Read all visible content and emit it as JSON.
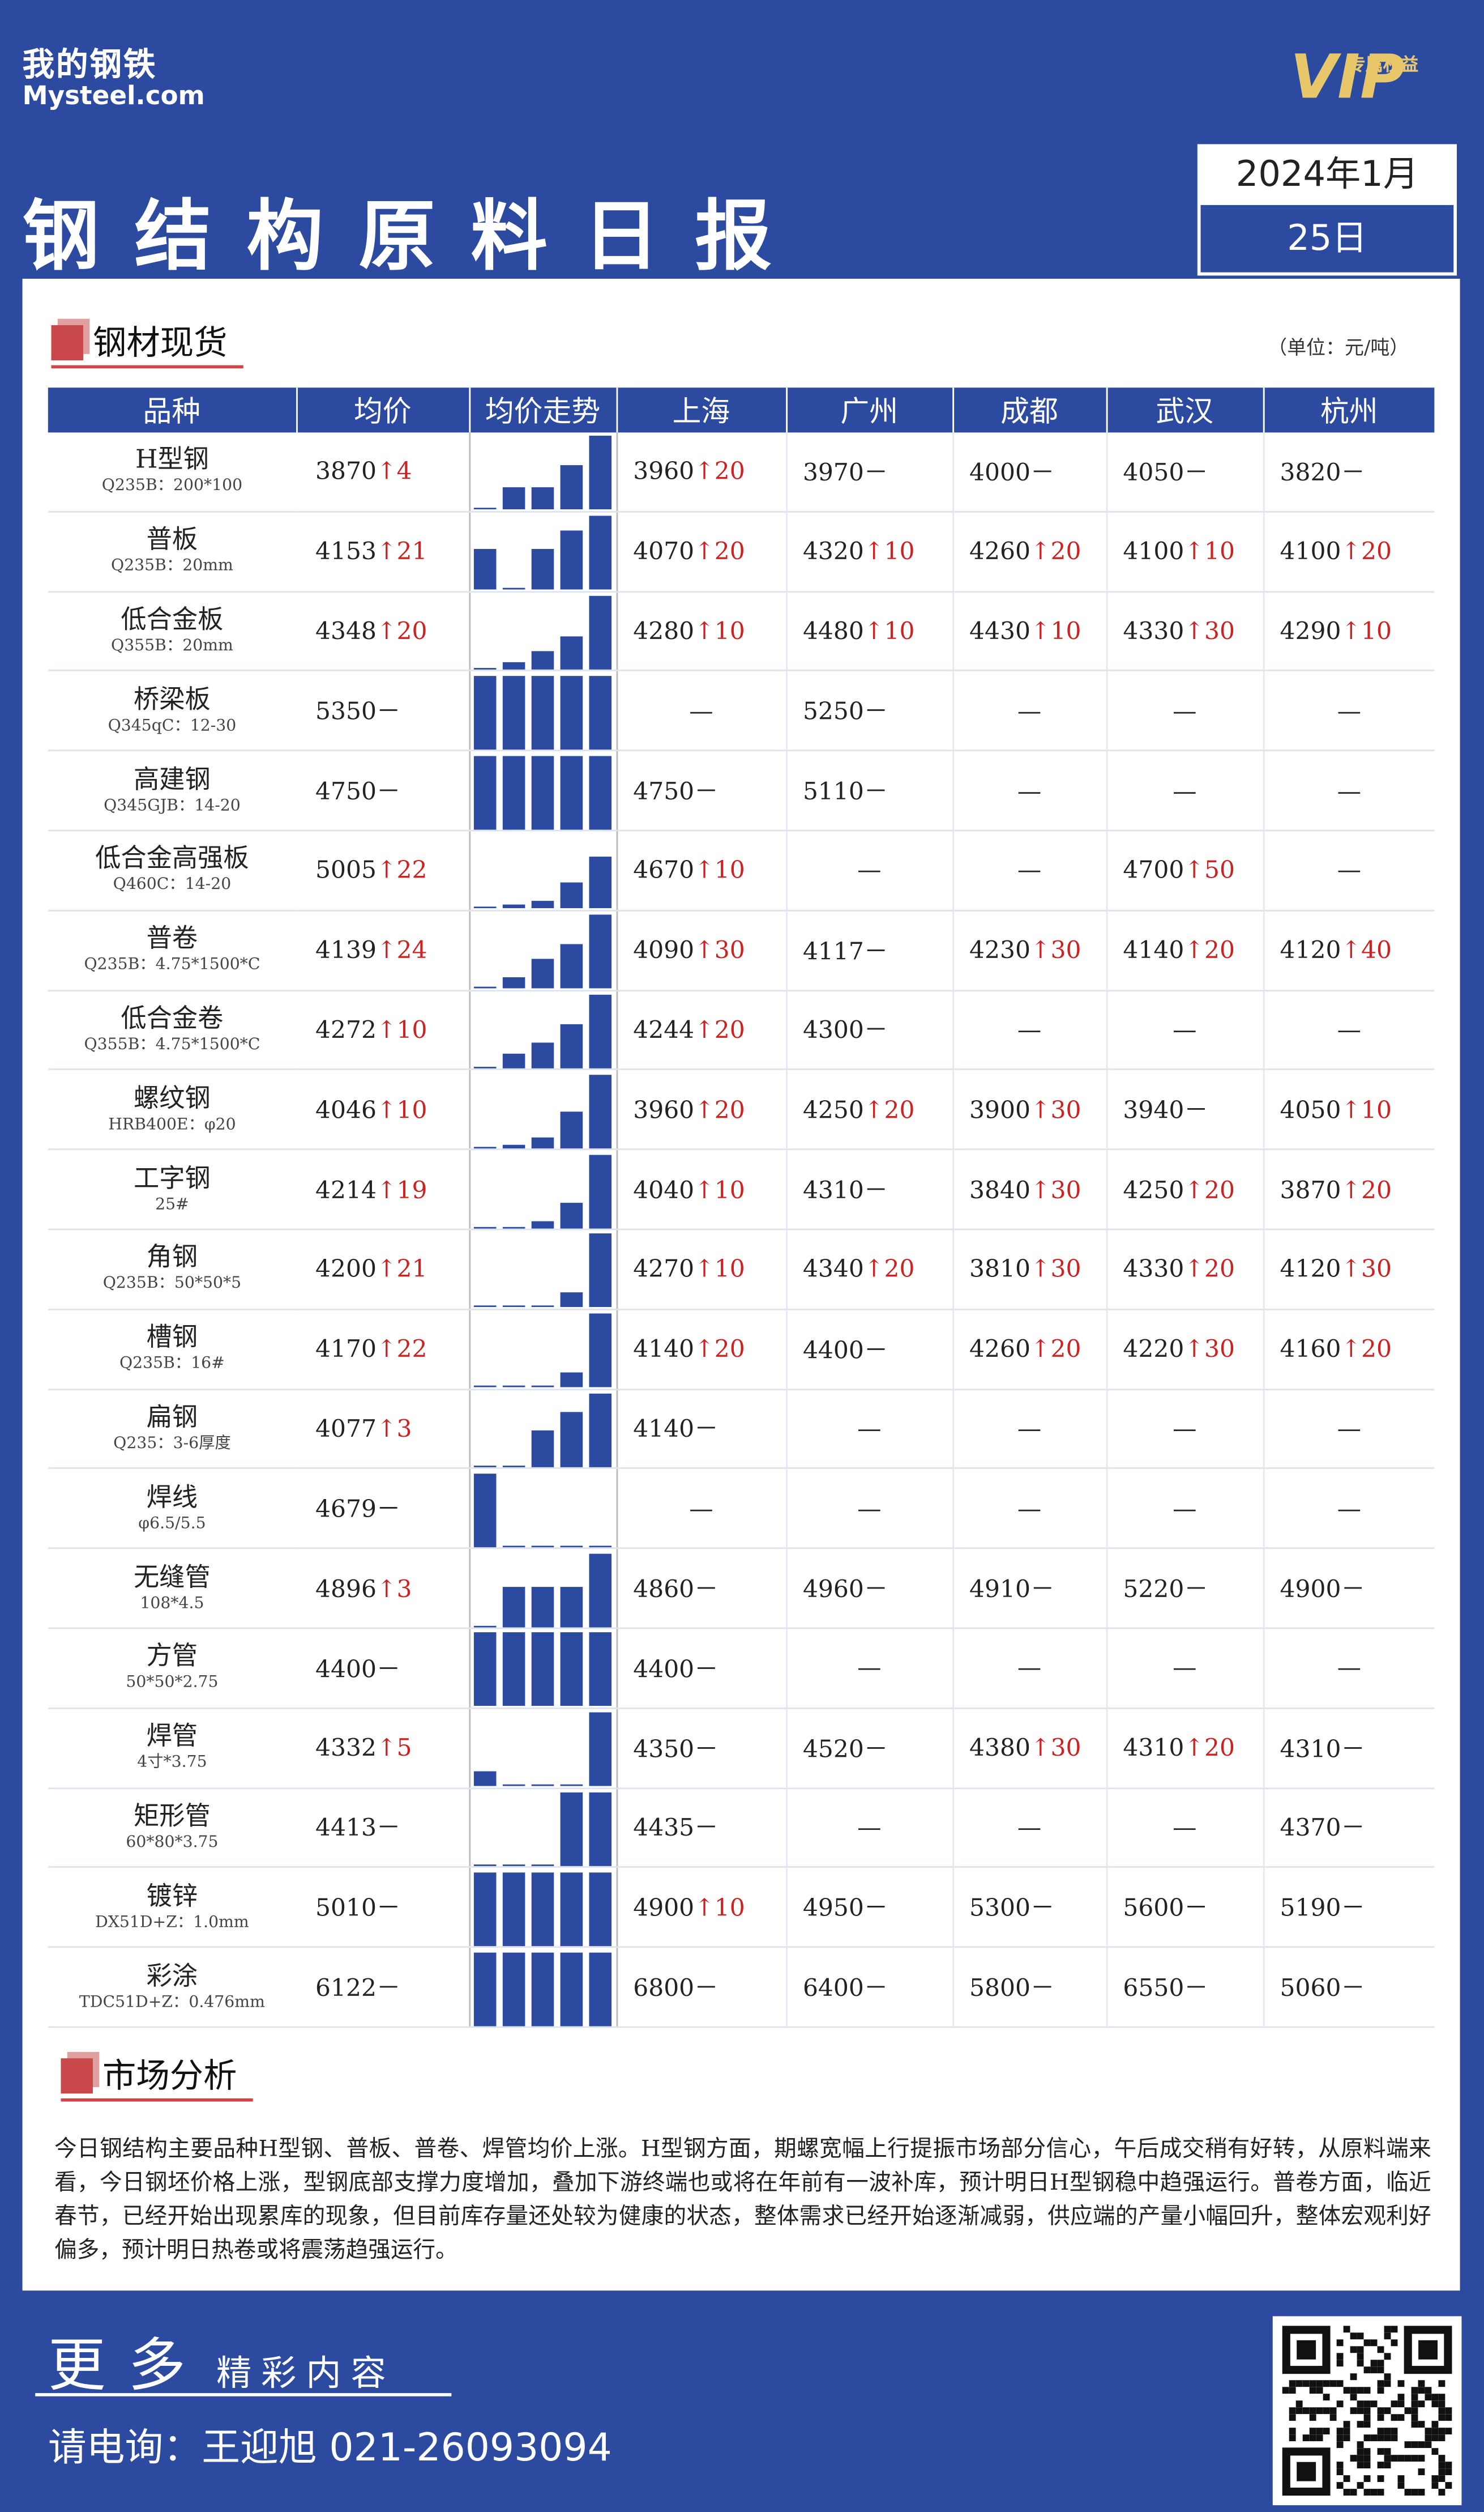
{
  "header": {
    "logo_cn": "我的钢铁",
    "logo_en": "Mysteel.com",
    "vip_tag": "专属权益",
    "vip_letters": "VIP",
    "title": "钢结构原料日报",
    "date_ym": "2024年1月",
    "date_d": "25日"
  },
  "section1": {
    "title": "钢材现货",
    "unit": "（单位：元/吨）"
  },
  "columns": [
    "品种",
    "均价",
    "均价走势",
    "上海",
    "广州",
    "成都",
    "武汉",
    "杭州"
  ],
  "rows": [
    {
      "name": "H型钢",
      "spec": "Q235B：200*100",
      "avg": "3870",
      "avg_ch": "4",
      "trend": [
        0,
        0.3,
        0.3,
        0.6,
        1
      ],
      "sh": [
        "3960",
        "20"
      ],
      "gz": [
        "3970",
        ""
      ],
      "cd": [
        "4000",
        ""
      ],
      "wh": [
        "4050",
        ""
      ],
      "hz": [
        "3820",
        ""
      ]
    },
    {
      "name": "普板",
      "spec": "Q235B：20mm",
      "avg": "4153",
      "avg_ch": "21",
      "trend": [
        0.55,
        0,
        0.55,
        0.8,
        1
      ],
      "sh": [
        "4070",
        "20"
      ],
      "gz": [
        "4320",
        "10"
      ],
      "cd": [
        "4260",
        "20"
      ],
      "wh": [
        "4100",
        "10"
      ],
      "hz": [
        "4100",
        "20"
      ]
    },
    {
      "name": "低合金板",
      "spec": "Q355B：20mm",
      "avg": "4348",
      "avg_ch": "20",
      "trend": [
        0,
        0.1,
        0.25,
        0.45,
        1
      ],
      "sh": [
        "4280",
        "10"
      ],
      "gz": [
        "4480",
        "10"
      ],
      "cd": [
        "4430",
        "10"
      ],
      "wh": [
        "4330",
        "30"
      ],
      "hz": [
        "4290",
        "10"
      ]
    },
    {
      "name": "桥梁板",
      "spec": "Q345qC：12-30",
      "avg": "5350",
      "avg_ch": "",
      "trend": [
        1,
        1,
        1,
        1,
        1
      ],
      "sh": [
        "—",
        ""
      ],
      "gz": [
        "5250",
        ""
      ],
      "cd": [
        "—",
        ""
      ],
      "wh": [
        "—",
        ""
      ],
      "hz": [
        "—",
        ""
      ]
    },
    {
      "name": "高建钢",
      "spec": "Q345GJB：14-20",
      "avg": "4750",
      "avg_ch": "",
      "trend": [
        1,
        1,
        1,
        1,
        1
      ],
      "sh": [
        "4750",
        ""
      ],
      "gz": [
        "5110",
        ""
      ],
      "cd": [
        "—",
        ""
      ],
      "wh": [
        "—",
        ""
      ],
      "hz": [
        "—",
        ""
      ]
    },
    {
      "name": "低合金高强板",
      "spec": "Q460C：14-20",
      "avg": "5005",
      "avg_ch": "22",
      "trend": [
        0,
        0.05,
        0.1,
        0.35,
        0.7
      ],
      "sh": [
        "4670",
        "10"
      ],
      "gz": [
        "—",
        ""
      ],
      "cd": [
        "—",
        ""
      ],
      "wh": [
        "4700",
        "50"
      ],
      "hz": [
        "—",
        ""
      ]
    },
    {
      "name": "普卷",
      "spec": "Q235B：4.75*1500*C",
      "avg": "4139",
      "avg_ch": "24",
      "trend": [
        0,
        0.15,
        0.4,
        0.6,
        1
      ],
      "sh": [
        "4090",
        "30"
      ],
      "gz": [
        "4117",
        ""
      ],
      "cd": [
        "4230",
        "30"
      ],
      "wh": [
        "4140",
        "20"
      ],
      "hz": [
        "4120",
        "40"
      ]
    },
    {
      "name": "低合金卷",
      "spec": "Q355B：4.75*1500*C",
      "avg": "4272",
      "avg_ch": "10",
      "trend": [
        0,
        0.2,
        0.35,
        0.6,
        1
      ],
      "sh": [
        "4244",
        "20"
      ],
      "gz": [
        "4300",
        ""
      ],
      "cd": [
        "—",
        ""
      ],
      "wh": [
        "—",
        ""
      ],
      "hz": [
        "—",
        ""
      ]
    },
    {
      "name": "螺纹钢",
      "spec": "HRB400E：φ20",
      "avg": "4046",
      "avg_ch": "10",
      "trend": [
        0,
        0.05,
        0.15,
        0.5,
        1
      ],
      "sh": [
        "3960",
        "20"
      ],
      "gz": [
        "4250",
        "20"
      ],
      "cd": [
        "3900",
        "30"
      ],
      "wh": [
        "3940",
        ""
      ],
      "hz": [
        "4050",
        "10"
      ]
    },
    {
      "name": "工字钢",
      "spec": "25#",
      "avg": "4214",
      "avg_ch": "19",
      "trend": [
        0,
        0,
        0.1,
        0.35,
        1
      ],
      "sh": [
        "4040",
        "10"
      ],
      "gz": [
        "4310",
        ""
      ],
      "cd": [
        "3840",
        "30"
      ],
      "wh": [
        "4250",
        "20"
      ],
      "hz": [
        "3870",
        "20"
      ]
    },
    {
      "name": "角钢",
      "spec": "Q235B：50*50*5",
      "avg": "4200",
      "avg_ch": "21",
      "trend": [
        0,
        0,
        0,
        0.2,
        1
      ],
      "sh": [
        "4270",
        "10"
      ],
      "gz": [
        "4340",
        "20"
      ],
      "cd": [
        "3810",
        "30"
      ],
      "wh": [
        "4330",
        "20"
      ],
      "hz": [
        "4120",
        "30"
      ]
    },
    {
      "name": "槽钢",
      "spec": "Q235B：16#",
      "avg": "4170",
      "avg_ch": "22",
      "trend": [
        0,
        0,
        0,
        0.2,
        1
      ],
      "sh": [
        "4140",
        "20"
      ],
      "gz": [
        "4400",
        ""
      ],
      "cd": [
        "4260",
        "20"
      ],
      "wh": [
        "4220",
        "30"
      ],
      "hz": [
        "4160",
        "20"
      ]
    },
    {
      "name": "扁钢",
      "spec": "Q235：3-6厚度",
      "avg": "4077",
      "avg_ch": "3",
      "trend": [
        0,
        0,
        0.5,
        0.75,
        1
      ],
      "sh": [
        "4140",
        ""
      ],
      "gz": [
        "—",
        ""
      ],
      "cd": [
        "—",
        ""
      ],
      "wh": [
        "—",
        ""
      ],
      "hz": [
        "—",
        ""
      ]
    },
    {
      "name": "焊线",
      "spec": "φ6.5/5.5",
      "avg": "4679",
      "avg_ch": "",
      "trend": [
        1,
        0,
        0,
        0,
        0
      ],
      "sh": [
        "—",
        ""
      ],
      "gz": [
        "—",
        ""
      ],
      "cd": [
        "—",
        ""
      ],
      "wh": [
        "—",
        ""
      ],
      "hz": [
        "—",
        ""
      ]
    },
    {
      "name": "无缝管",
      "spec": "108*4.5",
      "avg": "4896",
      "avg_ch": "3",
      "trend": [
        0,
        0.55,
        0.55,
        0.55,
        1
      ],
      "sh": [
        "4860",
        ""
      ],
      "gz": [
        "4960",
        ""
      ],
      "cd": [
        "4910",
        ""
      ],
      "wh": [
        "5220",
        ""
      ],
      "hz": [
        "4900",
        ""
      ]
    },
    {
      "name": "方管",
      "spec": "50*50*2.75",
      "avg": "4400",
      "avg_ch": "",
      "trend": [
        1,
        1,
        1,
        1,
        1
      ],
      "sh": [
        "4400",
        ""
      ],
      "gz": [
        "—",
        ""
      ],
      "cd": [
        "—",
        ""
      ],
      "wh": [
        "—",
        ""
      ],
      "hz": [
        "—",
        ""
      ]
    },
    {
      "name": "焊管",
      "spec": "4寸*3.75",
      "avg": "4332",
      "avg_ch": "5",
      "trend": [
        0.2,
        0,
        0,
        0,
        1
      ],
      "sh": [
        "4350",
        ""
      ],
      "gz": [
        "4520",
        ""
      ],
      "cd": [
        "4380",
        "30"
      ],
      "wh": [
        "4310",
        "20"
      ],
      "hz": [
        "4310",
        ""
      ]
    },
    {
      "name": "矩形管",
      "spec": "60*80*3.75",
      "avg": "4413",
      "avg_ch": "",
      "trend": [
        0,
        0,
        0,
        1,
        1
      ],
      "sh": [
        "4435",
        ""
      ],
      "gz": [
        "—",
        ""
      ],
      "cd": [
        "—",
        ""
      ],
      "wh": [
        "—",
        ""
      ],
      "hz": [
        "4370",
        ""
      ]
    },
    {
      "name": "镀锌",
      "spec": "DX51D+Z：1.0mm",
      "avg": "5010",
      "avg_ch": "",
      "trend": [
        1,
        1,
        1,
        1,
        1
      ],
      "sh": [
        "4900",
        "10"
      ],
      "gz": [
        "4950",
        ""
      ],
      "cd": [
        "5300",
        ""
      ],
      "wh": [
        "5600",
        ""
      ],
      "hz": [
        "5190",
        ""
      ]
    },
    {
      "name": "彩涂",
      "spec": "TDC51D+Z：0.476mm",
      "avg": "6122",
      "avg_ch": "",
      "trend": [
        1,
        1,
        1,
        1,
        1
      ],
      "sh": [
        "6800",
        ""
      ],
      "gz": [
        "6400",
        ""
      ],
      "cd": [
        "5800",
        ""
      ],
      "wh": [
        "6550",
        ""
      ],
      "hz": [
        "5060",
        ""
      ]
    }
  ],
  "section2": {
    "title": "市场分析",
    "text": "今日钢结构主要品种H型钢、普板、普卷、焊管均价上涨。H型钢方面，期螺宽幅上行提振市场部分信心，午后成交稍有好转，从原料端来看，今日钢坯价格上涨，型钢底部支撑力度增加，叠加下游终端也或将在年前有一波补库，预计明日H型钢稳中趋强运行。普卷方面，临近春节，已经开始出现累库的现象，但目前库存量还处较为健康的状态，整体需求已经开始逐渐减弱，供应端的产量小幅回升，整体宏观利好偏多，预计明日热卷或将震荡趋强运行。"
  },
  "footer": {
    "more_big": "更多",
    "more_small": "精彩内容",
    "phone": "请电询：王迎旭 021-26093094"
  },
  "colors": {
    "brand_blue": "#2b4aa0",
    "up_red": "#cc2222",
    "accent_red": "#c9494a"
  },
  "symbols": {
    "up_arrow": "↑",
    "no_change": "－"
  }
}
